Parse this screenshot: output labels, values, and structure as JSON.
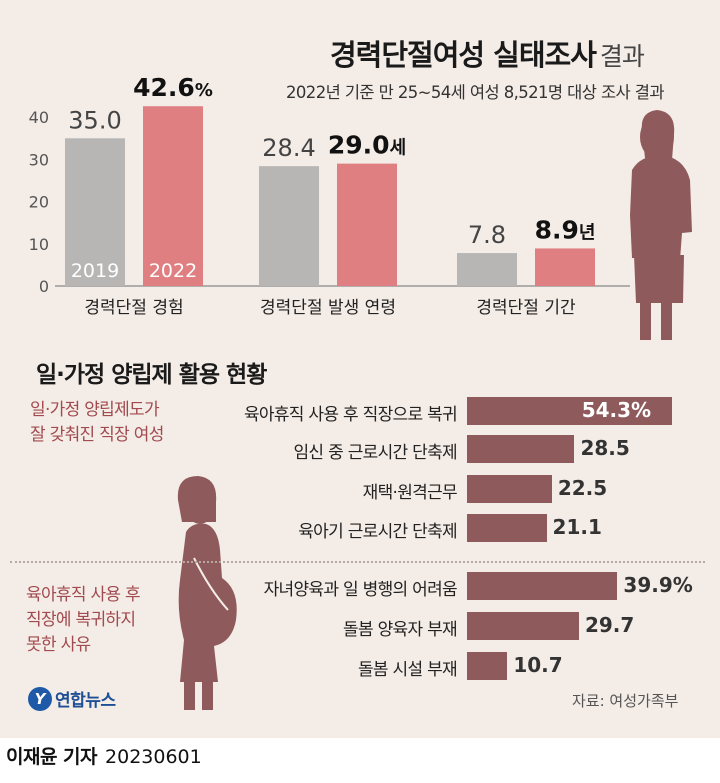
{
  "header": {
    "title": "경력단절여성 실태조사",
    "title_suffix": "결과",
    "subtitle": "2022년 기준 만 25~54세 여성 8,521명 대상 조사 결과"
  },
  "chart_data": [
    {
      "type": "bar",
      "ylim": [
        0,
        45
      ],
      "yticks": [
        "0",
        "10",
        "20",
        "30",
        "40"
      ],
      "series_names": [
        "2019",
        "2022"
      ],
      "colors": {
        "2019": "#b8b6b5",
        "2022": "#e07f82"
      },
      "groups": [
        {
          "label": "경력단절 경험",
          "values": [
            35.0,
            42.6
          ],
          "value_labels": [
            "35.0",
            "42.6"
          ],
          "unit": "%"
        },
        {
          "label": "경력단절 발생 연령",
          "values": [
            28.4,
            29.0
          ],
          "value_labels": [
            "28.4",
            "29.0"
          ],
          "unit": "세"
        },
        {
          "label": "경력단절 기간",
          "values": [
            7.8,
            8.9
          ],
          "value_labels": [
            "7.8",
            "8.9"
          ],
          "unit": "년"
        }
      ]
    },
    {
      "type": "bar",
      "orientation": "horizontal",
      "title": "일·가정 양립제 활용 현황",
      "bar_color": "#8f5a5c",
      "groups": [
        {
          "group_label": [
            "일·가정 양립제도가",
            "잘 갖춰진 직장 여성"
          ],
          "items": [
            {
              "label": "육아휴직 사용 후 직장으로 복귀",
              "value": 54.3,
              "value_label": "54.3%"
            },
            {
              "label": "임신 중 근로시간 단축제",
              "value": 28.5,
              "value_label": "28.5"
            },
            {
              "label": "재택·원격근무",
              "value": 22.5,
              "value_label": "22.5"
            },
            {
              "label": "육아기 근로시간 단축제",
              "value": 21.1,
              "value_label": "21.1"
            }
          ]
        },
        {
          "group_label": [
            "육아휴직 사용 후",
            "직장에 복귀하지",
            "못한 사유"
          ],
          "items": [
            {
              "label": "자녀양육과 일 병행의 어려움",
              "value": 39.9,
              "value_label": "39.9%"
            },
            {
              "label": "돌봄 양육자 부재",
              "value": 29.7,
              "value_label": "29.7"
            },
            {
              "label": "돌봄 시설 부재",
              "value": 10.7,
              "value_label": "10.7"
            }
          ]
        }
      ]
    }
  ],
  "footer": {
    "source": "자료: 여성가족부",
    "logo_mark": "Y",
    "logo_text": "연합뉴스",
    "reporter": "이재윤 기자",
    "date": "20230601"
  },
  "colors": {
    "background": "#f4ece6",
    "figure": "#8f5a5c",
    "accent_text": "#a14a4f"
  }
}
